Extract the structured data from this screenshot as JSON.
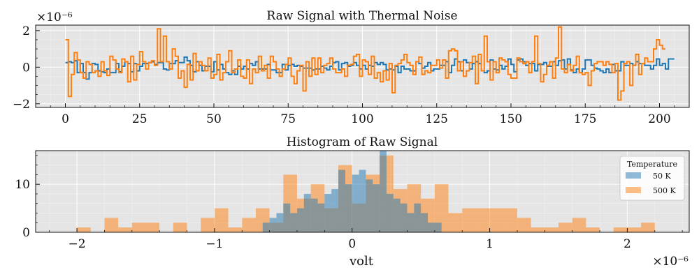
{
  "chart_data": [
    {
      "type": "line",
      "drawstyle": "steps",
      "title": "Raw Signal with Thermal Noise",
      "xlabel": "",
      "ylabel": "",
      "xlim": [
        -10,
        210
      ],
      "ylim": [
        -2.2e-06,
        2.3e-06
      ],
      "y_multiplier_label": "×10⁻⁶",
      "xticks": [
        0,
        25,
        50,
        75,
        100,
        125,
        150,
        175,
        200
      ],
      "xtick_labels": [
        "0",
        "25",
        "50",
        "75",
        "100",
        "125",
        "150",
        "175",
        "200"
      ],
      "yticks": [
        -2e-06,
        0,
        2e-06
      ],
      "ytick_labels": [
        "−2",
        "0",
        "2"
      ],
      "grid": true,
      "series": [
        {
          "color": "#1f77b4",
          "values": [
            0.25,
            0.3,
            0.25,
            0.35,
            -0.3,
            0.2,
            -0.3,
            -0.65,
            -0.3,
            0.2,
            0.15,
            -0.2,
            -0.25,
            -0.3,
            -0.1,
            -0.3,
            -0.3,
            0.2,
            -0.25,
            0.05,
            0.3,
            0.2,
            -0.25,
            0.2,
            -0.2,
            0.05,
            0.2,
            0.2,
            0.25,
            0.3,
            0.15,
            0.25,
            0.25,
            -0.1,
            -0.15,
            0.2,
            0.2,
            0.35,
            0.25,
            0.25,
            0.55,
            0.35,
            0.1,
            -0.25,
            0.3,
            0.1,
            -0.2,
            0.05,
            0.05,
            -0.25,
            0.3,
            -0.15,
            0.15,
            -0.1,
            -0.3,
            -0.4,
            -0.2,
            -0.4,
            0.05,
            -0.1,
            0.05,
            -0.1,
            0.2,
            0.1,
            0.3,
            -0.1,
            -0.1,
            -0.1,
            0.15,
            -0.15,
            -0.15,
            -0.3,
            -0.3,
            0.15,
            -0.15,
            0.1,
            0.15,
            0.05,
            0.1,
            0.05,
            -0.05,
            -0.05,
            -0.05,
            -0.15,
            -0.1,
            -0.1,
            0.05,
            -0.05,
            -0.15,
            0.05,
            0.25,
            0.3,
            -0.15,
            0.2,
            0.25,
            0.05,
            0.1,
            0.25,
            0.1,
            -0.1,
            0.1,
            -0.1,
            0.1,
            0.05,
            0.25,
            0.15,
            0.25,
            0.15,
            -0.15,
            -0.1,
            -0.15,
            0.05,
            -0.3,
            0.05,
            -0.1,
            -0.1,
            -0.2,
            -0.2,
            0.3,
            0.2,
            -0.05,
            0.05,
            0.25,
            -0.2,
            -0.1,
            -0.1,
            0.1,
            0.1,
            0.3,
            -0.3,
            0.1,
            0.45,
            0.3,
            -0.2,
            0.4,
            0.25,
            -0.1,
            0.2,
            0.3,
            0.2,
            -0.2,
            -0.3,
            -0.2,
            0.4,
            -0.1,
            -0.15,
            0.1,
            -0.1,
            0.05,
            0.45,
            0.15,
            -0.25,
            0.4,
            0.45,
            0.3,
            0.1,
            0.2,
            0.2,
            -0.2,
            0.15,
            0.15,
            0.25,
            0.05,
            0.05,
            0.3,
            0.1,
            0.35,
            0.4,
            -0.1,
            0.45,
            -0.15,
            -0.3,
            -0.1,
            -0.3,
            -0.1,
            0.4,
            0.4,
            0.1,
            -0.05,
            -0.1,
            -0.2,
            -0.3,
            -0.1,
            -0.3,
            0.15,
            -0.2,
            -0.2,
            0.3,
            0.1,
            0.1,
            0.2,
            0.1,
            0.3,
            0.2,
            0.2,
            0.1,
            0.1,
            -0.1,
            0.1,
            0.45,
            0.1,
            0.2,
            -0.1,
            0.45,
            0.45
          ],
          "scale": 1e-06
        },
        {
          "color": "#ff7f0e",
          "values": [
            1.5,
            -1.6,
            -0.4,
            0.8,
            0.4,
            -0.3,
            -0.6,
            0.3,
            0.15,
            -0.3,
            -0.2,
            -0.5,
            0.3,
            -0.2,
            -0.45,
            0.6,
            0.4,
            -0.1,
            -0.3,
            0.45,
            0.3,
            -0.8,
            0.6,
            -0.7,
            0.15,
            0.85,
            0.3,
            -0.1,
            0.25,
            0.35,
            0.1,
            2.1,
            0.3,
            1.7,
            0.3,
            -0.1,
            1.0,
            0.6,
            -0.6,
            -0.2,
            -1.1,
            0.15,
            -0.7,
            0.75,
            -0.2,
            0.3,
            0.1,
            -0.2,
            0.5,
            -0.6,
            -0.4,
            0.7,
            -0.7,
            -0.3,
            0.3,
            0.9,
            -0.3,
            -0.1,
            0.4,
            -0.5,
            -0.6,
            0.4,
            -0.9,
            -0.1,
            -0.3,
            0.6,
            -0.2,
            0.1,
            -0.6,
            0.6,
            0.3,
            -0.1,
            -0.5,
            -0.1,
            0.15,
            0.5,
            -0.5,
            -0.9,
            -0.2,
            0.1,
            -1.3,
            0.3,
            -0.5,
            0.5,
            -0.4,
            0.5,
            -0.3,
            0.1,
            0.2,
            0.5,
            -0.1,
            -0.3,
            -0.3,
            -0.1,
            -0.5,
            0.1,
            0.15,
            0.6,
            0.7,
            -0.5,
            0.4,
            0.3,
            -0.4,
            0.6,
            -0.6,
            -0.3,
            -0.8,
            -0.2,
            -0.7,
            0.2,
            -1.4,
            0.1,
            0.2,
            0.4,
            0.7,
            0.25,
            0.1,
            -0.4,
            0.3,
            0.55,
            -0.4,
            -0.2,
            -0.3,
            0.1,
            0.1,
            0.4,
            -0.05,
            0.4,
            -0.6,
            0.9,
            1.0,
            0.9,
            -0.2,
            0.3,
            -0.5,
            -0.2,
            0.25,
            0.6,
            -0.9,
            0.7,
            -0.2,
            1.7,
            0.3,
            -0.7,
            0.3,
            -0.3,
            0.5,
            0.4,
            0.3,
            -0.4,
            -0.6,
            -0.6,
            0.5,
            0.3,
            0.2,
            0.3,
            -0.3,
            0.3,
            1.7,
            0.2,
            -0.8,
            -0.4,
            0.1,
            0.3,
            -0.6,
            0.5,
            2.2,
            -0.1,
            -0.3,
            0.15,
            -0.2,
            0.1,
            0.6,
            -0.3,
            -0.4,
            -0.3,
            -1.0,
            -0.2,
            0.2,
            0.3,
            0.3,
            0.1,
            0.3,
            0.15,
            -0.3,
            0.2,
            -1.8,
            -1.3,
            0.2,
            0.3,
            -1.0,
            0.1,
            0.7,
            -0.4,
            0.2,
            0.5,
            0.3,
            0.3,
            1.0,
            1.5,
            1.2,
            1.0
          ],
          "scale": 1e-06
        }
      ]
    },
    {
      "type": "bar",
      "histogram": true,
      "title": "Histogram of Raw Signal",
      "xlabel": "volt",
      "ylabel": "",
      "xlim": [
        -2.3e-06,
        2.45e-06
      ],
      "ylim": [
        0,
        17
      ],
      "x_multiplier_label": "×10⁻⁶",
      "xticks": [
        -2e-06,
        -1e-06,
        0,
        1e-06,
        2e-06
      ],
      "xtick_labels": [
        "−2",
        "−1",
        "0",
        "1",
        "2"
      ],
      "yticks": [
        0,
        10
      ],
      "ytick_labels": [
        "0",
        "10"
      ],
      "grid": true,
      "legend": {
        "title": "Temperature",
        "placement": "top-right",
        "entries": [
          {
            "label": "50 K",
            "color": "#1f77b4"
          },
          {
            "label": "500 K",
            "color": "#ff7f0e"
          }
        ]
      },
      "series": [
        {
          "name": "50 K",
          "color": "#1f77b4",
          "bin_edges_scaled": [
            -0.65,
            -0.6,
            -0.55,
            -0.5,
            -0.45,
            -0.4,
            -0.35,
            -0.3,
            -0.25,
            -0.2,
            -0.15,
            -0.1,
            -0.05,
            0.0,
            0.05,
            0.1,
            0.15,
            0.2,
            0.25,
            0.3,
            0.35,
            0.4,
            0.45,
            0.5,
            0.55,
            0.6,
            0.65
          ],
          "counts": [
            2,
            3,
            4,
            6,
            4,
            5,
            8,
            7,
            6,
            8,
            9,
            13,
            10,
            12,
            13,
            11,
            10,
            17,
            8,
            7,
            6,
            4,
            6,
            4,
            2,
            2
          ],
          "scale": 1e-06
        },
        {
          "name": "500 K",
          "color": "#ff7f0e",
          "bin_edges_scaled": [
            -2.0,
            -1.9,
            -1.8,
            -1.7,
            -1.6,
            -1.5,
            -1.4,
            -1.3,
            -1.2,
            -1.1,
            -1.0,
            -0.9,
            -0.8,
            -0.7,
            -0.6,
            -0.5,
            -0.4,
            -0.3,
            -0.2,
            -0.1,
            0.0,
            0.1,
            0.2,
            0.3,
            0.4,
            0.5,
            0.6,
            0.7,
            0.8,
            0.9,
            1.0,
            1.1,
            1.2,
            1.3,
            1.4,
            1.5,
            1.6,
            1.7,
            1.8,
            1.9,
            2.0,
            2.1,
            2.2
          ],
          "counts": [
            1,
            0,
            3,
            1,
            2,
            2,
            0,
            2,
            0,
            3,
            5,
            1,
            3,
            5,
            2,
            12,
            7,
            10,
            5,
            14,
            6,
            12,
            16,
            9,
            10,
            7,
            10,
            4,
            5,
            5,
            5,
            5,
            3,
            1,
            1,
            2,
            3,
            1,
            0,
            1,
            1,
            2
          ],
          "scale": 1e-06
        }
      ]
    }
  ]
}
